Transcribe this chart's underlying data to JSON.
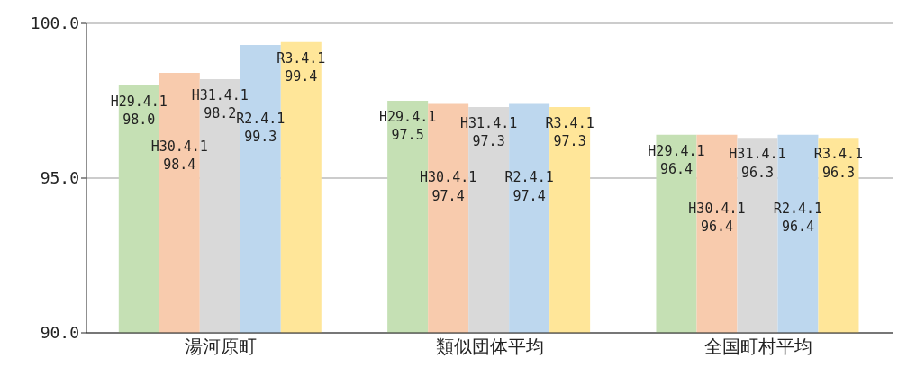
{
  "chart_data": {
    "type": "bar",
    "categories": [
      "湯河原町",
      "類似団体平均",
      "全国町村平均"
    ],
    "series": [
      {
        "name": "H29.4.1",
        "color": "#c5e0b4",
        "values": [
          98.0,
          97.5,
          96.4
        ],
        "value_labels": [
          "98.0",
          "97.5",
          "96.4"
        ]
      },
      {
        "name": "H30.4.1",
        "color": "#f8cbad",
        "values": [
          98.4,
          97.4,
          96.4
        ],
        "value_labels": [
          "98.4",
          "97.4",
          "96.4"
        ]
      },
      {
        "name": "H31.4.1",
        "color": "#d9d9d9",
        "values": [
          98.2,
          97.3,
          96.3
        ],
        "value_labels": [
          "98.2",
          "97.3",
          "96.3"
        ]
      },
      {
        "name": "R2.4.1",
        "color": "#bdd7ee",
        "values": [
          99.3,
          97.4,
          96.4
        ],
        "value_labels": [
          "99.3",
          "97.4",
          "96.4"
        ]
      },
      {
        "name": "R3.4.1",
        "color": "#ffe699",
        "values": [
          99.4,
          97.3,
          96.3
        ],
        "value_labels": [
          "99.4",
          "97.3",
          "96.3"
        ]
      }
    ],
    "ylim": [
      90,
      100
    ],
    "yticks": [
      {
        "value": 90,
        "label": "90.0"
      },
      {
        "value": 95,
        "label": "95.0"
      },
      {
        "value": 100,
        "label": "100.0"
      }
    ],
    "grid": "y",
    "legend": false
  }
}
